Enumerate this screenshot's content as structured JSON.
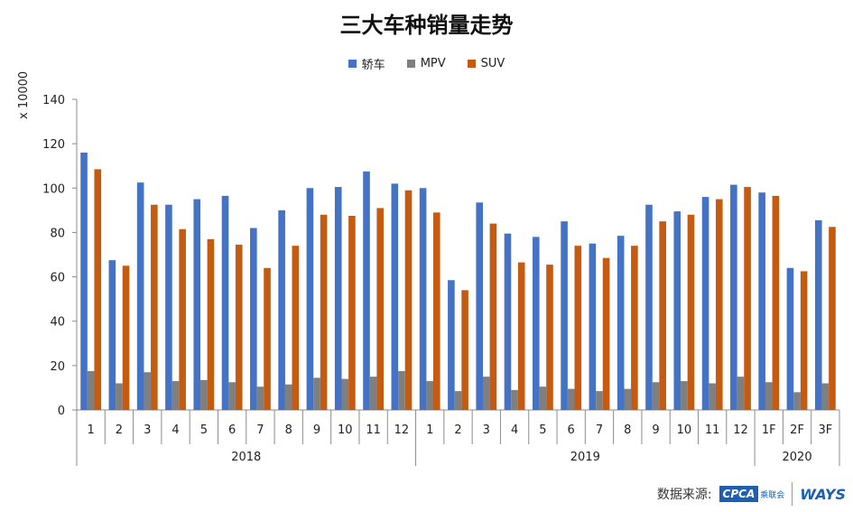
{
  "chart_data": {
    "type": "bar",
    "title": "三大车种销量走势",
    "ylabel": "x 10000",
    "ylim": [
      0,
      140
    ],
    "yticks": [
      0,
      20,
      40,
      60,
      80,
      100,
      120,
      140
    ],
    "grid": false,
    "legend_position": "top-center",
    "categories": [
      "1",
      "2",
      "3",
      "4",
      "5",
      "6",
      "7",
      "8",
      "9",
      "10",
      "11",
      "12",
      "1",
      "2",
      "3",
      "4",
      "5",
      "6",
      "7",
      "8",
      "9",
      "10",
      "11",
      "12",
      "1F",
      "2F",
      "3F"
    ],
    "groups": [
      {
        "label": "2018",
        "count": 12
      },
      {
        "label": "2019",
        "count": 12
      },
      {
        "label": "2020",
        "count": 3
      }
    ],
    "series": [
      {
        "name": "轿车",
        "color": "#4472c4",
        "values": [
          116,
          67.5,
          102.5,
          92.5,
          95,
          96.5,
          82,
          90,
          100,
          100.5,
          107.5,
          102,
          100,
          58.5,
          93.5,
          79.5,
          78,
          85,
          75,
          78.5,
          92.5,
          89.5,
          96,
          101.5,
          98,
          64,
          85.5
        ]
      },
      {
        "name": "MPV",
        "color": "#7f7f7f",
        "values": [
          17.5,
          12,
          17,
          13,
          13.5,
          12.5,
          10.5,
          11.5,
          14.5,
          14,
          15,
          17.5,
          13,
          8.5,
          15,
          9,
          10.5,
          9.5,
          8.5,
          9.5,
          12.5,
          13,
          12,
          15,
          12.5,
          8,
          12
        ]
      },
      {
        "name": "SUV",
        "color": "#c55a11",
        "values": [
          108.5,
          65,
          92.5,
          81.5,
          77,
          74.5,
          64,
          74,
          88,
          87.5,
          91,
          99,
          89,
          54,
          84,
          66.5,
          65.5,
          74,
          68.5,
          74,
          85,
          88,
          95,
          100.5,
          96.5,
          62.5,
          82.5
        ]
      }
    ]
  },
  "footer": {
    "source_label": "数据来源:",
    "cpca_logo_text": "CPCA",
    "cpca_sub_text": "乘联会",
    "ways_logo_text": "WAYS"
  }
}
